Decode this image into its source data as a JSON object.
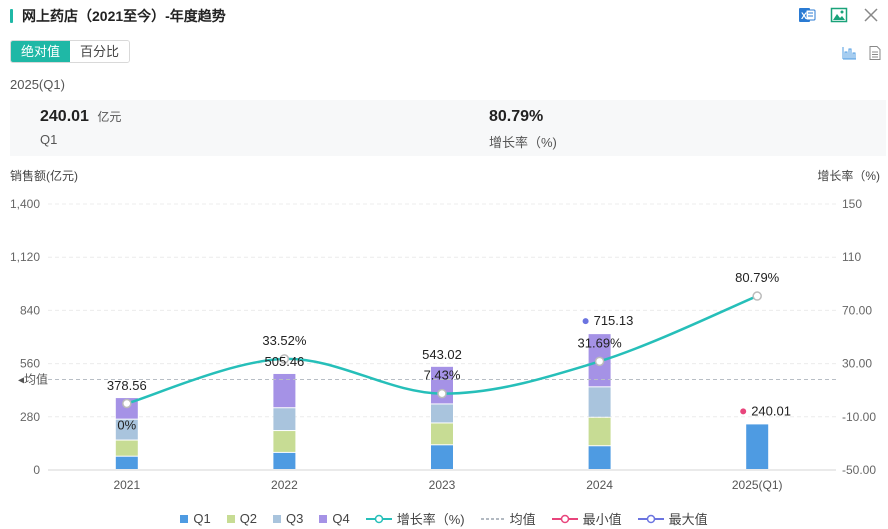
{
  "header": {
    "title": "网上药店（2021至今）-年度趋势",
    "icons": [
      "excel-export-icon",
      "image-export-icon",
      "close-icon"
    ]
  },
  "tabs": [
    {
      "label": "绝对值",
      "active": true
    },
    {
      "label": "百分比",
      "active": false
    }
  ],
  "view_icons": [
    "bar-chart-icon",
    "table-icon"
  ],
  "period_label": "2025(Q1)",
  "stats": [
    {
      "value": "240.01",
      "unit": "亿元",
      "label": "Q1"
    },
    {
      "value": "80.79%",
      "unit": "",
      "label": "增长率（%)"
    }
  ],
  "colors": {
    "accent": "#1fb8a6",
    "q1": "#4e9be2",
    "q2": "#c7dc94",
    "q3": "#a9c4dd",
    "q4": "#a592e6",
    "growth": "#26bfb9",
    "min": "#e8457c",
    "max": "#6b74e0"
  },
  "legend": [
    {
      "label": "Q1",
      "type": "square",
      "color": "#4e9be2"
    },
    {
      "label": "Q2",
      "type": "square",
      "color": "#c7dc94"
    },
    {
      "label": "Q3",
      "type": "square",
      "color": "#a9c4dd"
    },
    {
      "label": "Q4",
      "type": "square",
      "color": "#a592e6"
    },
    {
      "label": "增长率（%)",
      "type": "line-circle",
      "color": "#26bfb9"
    },
    {
      "label": "均值",
      "type": "dashed",
      "color": "#9aa3ad"
    },
    {
      "label": "最小值",
      "type": "line-circle",
      "color": "#e8457c"
    },
    {
      "label": "最大值",
      "type": "line-circle",
      "color": "#6b74e0"
    }
  ],
  "chart_data": {
    "type": "bar",
    "stacked": true,
    "categories": [
      "2021",
      "2022",
      "2023",
      "2024",
      "2025(Q1)"
    ],
    "series": [
      {
        "name": "Q1",
        "values": [
          70,
          90,
          130,
          125,
          240.01
        ]
      },
      {
        "name": "Q2",
        "values": [
          85,
          115,
          115,
          150,
          0
        ]
      },
      {
        "name": "Q3",
        "values": [
          110,
          120,
          100,
          160,
          0
        ]
      },
      {
        "name": "Q4",
        "values": [
          113.56,
          180.46,
          198.02,
          280.13,
          0
        ]
      }
    ],
    "totals": [
      378.56,
      505.46,
      543.02,
      715.13,
      240.01
    ],
    "total_labels": [
      "378.56",
      "505.46",
      "543.02",
      "715.13",
      "240.01"
    ],
    "growth_rate": {
      "name": "增长率（%)",
      "values": [
        0,
        33.52,
        7.43,
        31.69,
        80.79
      ],
      "labels": [
        "0%",
        "33.52%",
        "7.43%",
        "31.69%",
        "80.79%"
      ]
    },
    "mean": {
      "label": "均值",
      "value": 476.5
    },
    "min": {
      "label": "最小值",
      "value": 240.01,
      "category": "2025(Q1)"
    },
    "max": {
      "label": "最大值",
      "value": 715.13,
      "category": "2024"
    },
    "ylabel_left": "销售额(亿元)",
    "ylabel_right": "增长率（%)",
    "ylim_left": [
      0,
      1400
    ],
    "yticks_left": [
      "0",
      "280",
      "560",
      "840",
      "1,120",
      "1,400"
    ],
    "ylim_right": [
      -50,
      150
    ],
    "yticks_right": [
      "-50.00",
      "-10.00",
      "30.00",
      "70.00",
      "110",
      "150"
    ],
    "grid": true,
    "legend_position": "bottom"
  }
}
